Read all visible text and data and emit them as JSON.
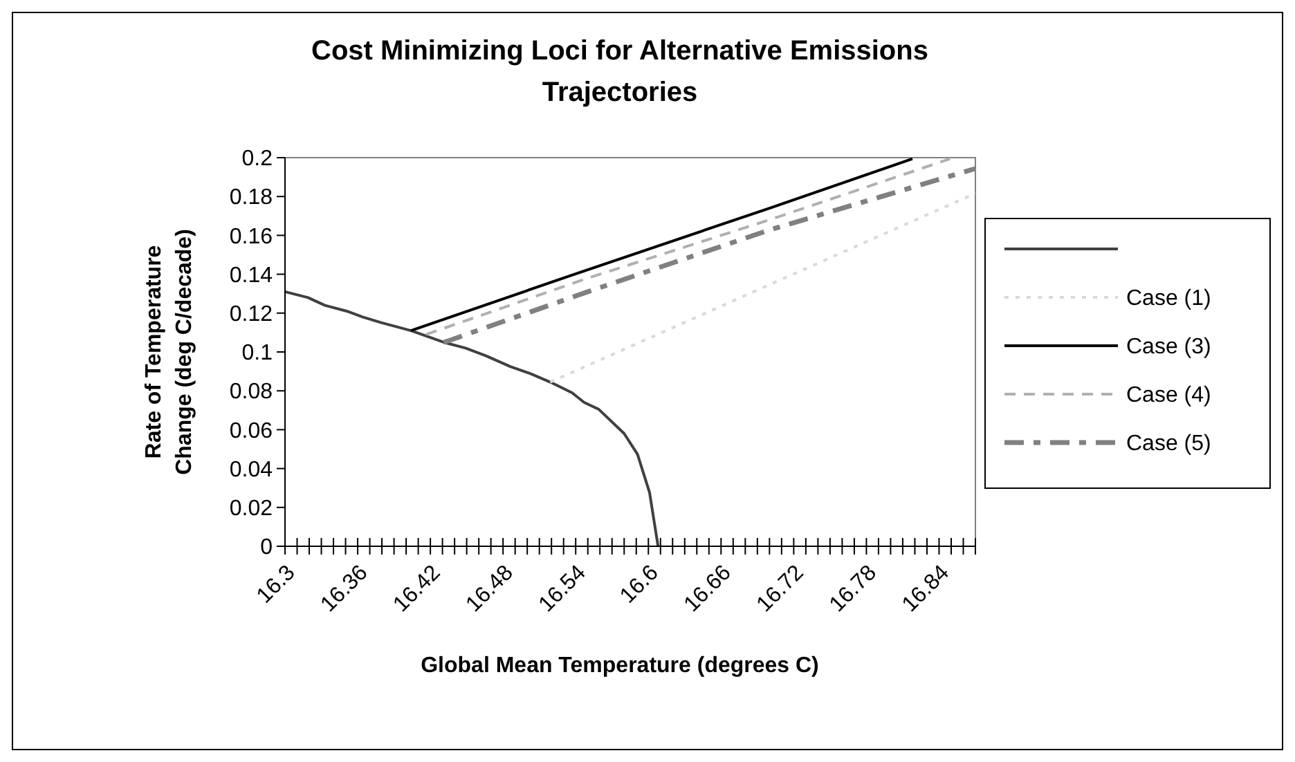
{
  "chart_data": {
    "type": "line",
    "title": "Cost Minimizing Loci for Alternative Emissions Trajectories",
    "xlabel": "Global Mean Temperature (degrees C)",
    "ylabel": "Rate of Temperature Change (deg C/decade)",
    "xlim": [
      16.3,
      16.87
    ],
    "ylim": [
      0,
      0.2
    ],
    "xticks": [
      16.3,
      {
        "value": 16.31,
        "label": null
      },
      {
        "value": 16.32,
        "label": null
      },
      {
        "value": 16.33,
        "label": null
      },
      {
        "value": 16.34,
        "label": null
      },
      {
        "value": 16.35,
        "label": null
      },
      16.36,
      {
        "value": 16.37,
        "label": null
      },
      {
        "value": 16.38,
        "label": null
      },
      {
        "value": 16.39,
        "label": null
      },
      {
        "value": 16.4,
        "label": null
      },
      {
        "value": 16.41,
        "label": null
      },
      16.42,
      {
        "value": 16.43,
        "label": null
      },
      {
        "value": 16.44,
        "label": null
      },
      {
        "value": 16.45,
        "label": null
      },
      {
        "value": 16.46,
        "label": null
      },
      {
        "value": 16.47,
        "label": null
      },
      16.48,
      {
        "value": 16.49,
        "label": null
      },
      {
        "value": 16.5,
        "label": null
      },
      {
        "value": 16.51,
        "label": null
      },
      {
        "value": 16.52,
        "label": null
      },
      {
        "value": 16.53,
        "label": null
      },
      16.54,
      {
        "value": 16.55,
        "label": null
      },
      {
        "value": 16.56,
        "label": null
      },
      {
        "value": 16.57,
        "label": null
      },
      {
        "value": 16.58,
        "label": null
      },
      {
        "value": 16.59,
        "label": null
      },
      16.6,
      {
        "value": 16.61,
        "label": null
      },
      {
        "value": 16.62,
        "label": null
      },
      {
        "value": 16.63,
        "label": null
      },
      {
        "value": 16.64,
        "label": null
      },
      {
        "value": 16.65,
        "label": null
      },
      16.66,
      {
        "value": 16.67,
        "label": null
      },
      {
        "value": 16.68,
        "label": null
      },
      {
        "value": 16.69,
        "label": null
      },
      {
        "value": 16.7,
        "label": null
      },
      {
        "value": 16.71,
        "label": null
      },
      16.72,
      {
        "value": 16.73,
        "label": null
      },
      {
        "value": 16.74,
        "label": null
      },
      {
        "value": 16.75,
        "label": null
      },
      {
        "value": 16.76,
        "label": null
      },
      {
        "value": 16.77,
        "label": null
      },
      16.78,
      {
        "value": 16.79,
        "label": null
      },
      {
        "value": 16.8,
        "label": null
      },
      {
        "value": 16.81,
        "label": null
      },
      {
        "value": 16.82,
        "label": null
      },
      {
        "value": 16.83,
        "label": null
      },
      16.84,
      {
        "value": 16.85,
        "label": null
      },
      {
        "value": 16.86,
        "label": null
      },
      {
        "value": 16.87,
        "label": null
      }
    ],
    "yticks": [
      0,
      0.02,
      0.04,
      0.06,
      0.08,
      0.1,
      0.12,
      0.14,
      0.16,
      0.18,
      0.2
    ],
    "grid": false,
    "legend": "right",
    "marker": "none",
    "series": [
      {
        "color": "#404040",
        "line_style": "solid",
        "x": [
          16.3,
          16.319,
          16.333,
          16.351,
          16.364,
          16.38,
          16.404,
          16.431,
          16.449,
          16.466,
          16.486,
          16.502,
          16.519,
          16.537,
          16.547,
          16.559,
          16.58,
          16.591,
          16.601,
          16.608
        ],
        "values": [
          0.131,
          0.128,
          0.124,
          0.121,
          0.118,
          0.115,
          0.111,
          0.105,
          0.102,
          0.098,
          0.0925,
          0.089,
          0.0845,
          0.079,
          0.074,
          0.0705,
          0.058,
          0.0474,
          0.0276,
          0
        ]
      },
      {
        "name": "Case (1)",
        "color": "#d9d9d9",
        "line_style": "dotted",
        "x": [
          16.519,
          16.7715,
          16.87
        ],
        "values": [
          0.0845,
          0.1544,
          0.1816
        ]
      },
      {
        "name": "Case (3)",
        "color": "#000000",
        "line_style": "solid",
        "x": [
          16.404,
          16.539,
          16.7,
          16.818
        ],
        "values": [
          0.111,
          0.14,
          0.174,
          0.1994
        ]
      },
      {
        "name": "Case (4)",
        "color": "#b0b0b0",
        "line_style": "dashed",
        "x": [
          16.4165,
          16.55,
          16.7,
          16.849
        ],
        "values": [
          0.109,
          0.138,
          0.168,
          0.1994
        ]
      },
      {
        "name": "Case (5)",
        "color": "#808080",
        "line_style": "dashdot",
        "x": [
          16.431,
          16.55,
          16.7,
          16.87
        ],
        "values": [
          0.1049,
          0.131,
          0.1628,
          0.1944
        ]
      }
    ]
  }
}
